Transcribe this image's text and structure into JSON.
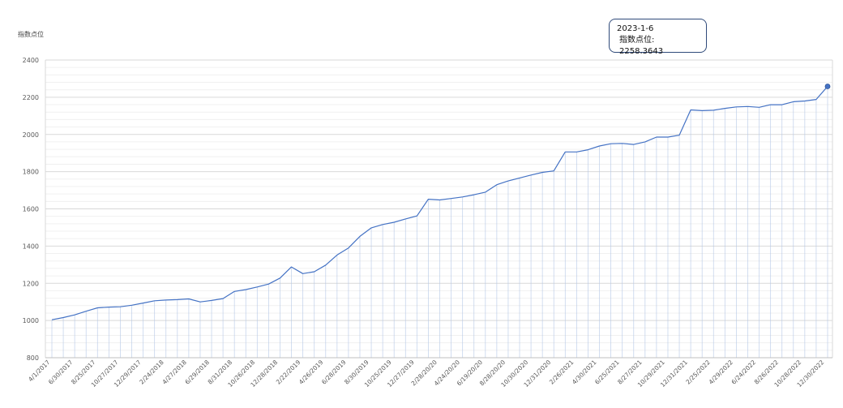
{
  "chart_data": {
    "type": "line",
    "title": "",
    "ylabel": "指数点位",
    "xlabel": "",
    "ylim": [
      800,
      2400
    ],
    "yticks": [
      800,
      1000,
      1200,
      1400,
      1600,
      1800,
      2000,
      2200,
      2400
    ],
    "grid": true,
    "legend": "none",
    "x_tick_labels": [
      "4/1/2017",
      "6/30/2017",
      "8/25/2017",
      "10/27/2017",
      "12/29/2017",
      "2/24/2018",
      "4/27/2018",
      "6/29/2018",
      "8/31/2018",
      "10/26/2018",
      "12/28/2018",
      "2/22/2019",
      "4/26/2019",
      "6/28/2019",
      "8/30/2019",
      "10/25/2019",
      "12/27/2019",
      "2/28/20/20",
      "4/24/20/20",
      "6/19/20/20",
      "8/28/20/20",
      "10/30/2020",
      "12/31/2020",
      "2/26/2021",
      "4/30/2021",
      "6/25/2021",
      "8/27/2021",
      "10/29/2021",
      "12/31/2021",
      "2/25/2022",
      "4/29/2022",
      "6/24/2022",
      "8/26/2022",
      "10/28/2022",
      "12/30/2022"
    ],
    "series": [
      {
        "color": "#4472c4",
        "values": [
          1004,
          1016,
          1030,
          1050,
          1068,
          1072,
          1074,
          1082,
          1094,
          1106,
          1110,
          1112,
          1116,
          1100,
          1108,
          1118,
          1156,
          1166,
          1180,
          1196,
          1228,
          1288,
          1252,
          1262,
          1298,
          1352,
          1390,
          1452,
          1498,
          1516,
          1528,
          1546,
          1562,
          1652,
          1648,
          1656,
          1664,
          1676,
          1690,
          1730,
          1750,
          1766,
          1782,
          1796,
          1804,
          1906,
          1906,
          1918,
          1938,
          1950,
          1952,
          1946,
          1960,
          1986,
          1986,
          1996,
          2132,
          2128,
          2130,
          2140,
          2148,
          2150,
          2146,
          2160,
          2160,
          2176,
          2180,
          2188,
          2258.3643
        ]
      }
    ],
    "highlight": {
      "label": "2023-1-6",
      "value_label": "指数点位: 2258.3643",
      "value": 2258.3643
    }
  },
  "colors": {
    "line": "#4472c4",
    "grid": "#d9d9d9",
    "vgrid": "#b4c7e7",
    "axis_text": "#595959"
  }
}
